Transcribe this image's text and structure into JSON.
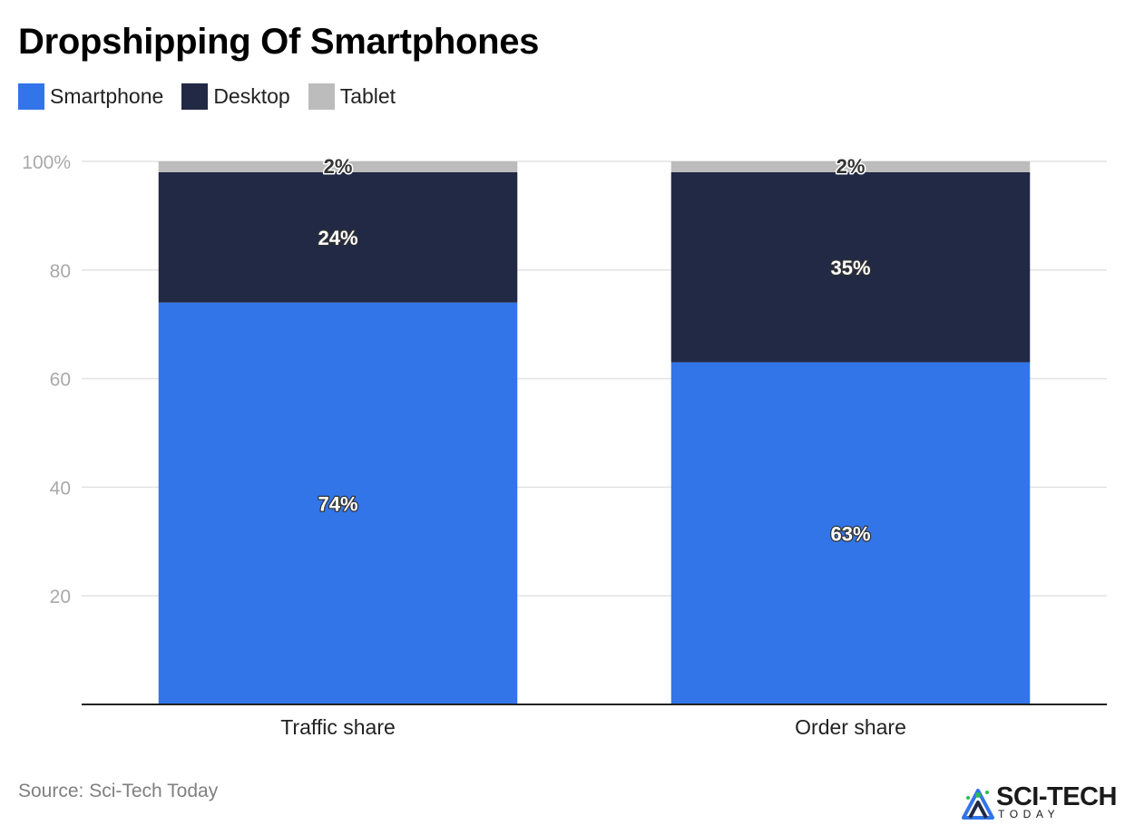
{
  "colors": {
    "Smartphone": "#3275e8",
    "Desktop": "#212945",
    "Tablet": "#bcbcbc"
  },
  "chart_data": {
    "type": "bar",
    "stacked": true,
    "title": "Dropshipping Of Smartphones",
    "categories": [
      "Traffic share",
      "Order share"
    ],
    "series": [
      {
        "name": "Smartphone",
        "values": [
          74,
          63
        ],
        "labels": [
          "74%",
          "63%"
        ]
      },
      {
        "name": "Desktop",
        "values": [
          24,
          35
        ],
        "labels": [
          "24%",
          "35%"
        ]
      },
      {
        "name": "Tablet",
        "values": [
          2,
          2
        ],
        "labels": [
          "2%",
          "2%"
        ]
      }
    ],
    "ylim": [
      0,
      100
    ],
    "yticks": [
      20,
      40,
      60,
      80,
      100
    ],
    "ytick_labels": [
      "20",
      "40",
      "60",
      "80",
      "100%"
    ],
    "grid": true,
    "legend_position": "top-left"
  },
  "source": "Source: Sci-Tech Today",
  "brand": {
    "name": "SCI-TECH",
    "subtitle": "TODAY"
  },
  "icons": {
    "brand_logo": "sci-tech-today-logo-icon"
  }
}
